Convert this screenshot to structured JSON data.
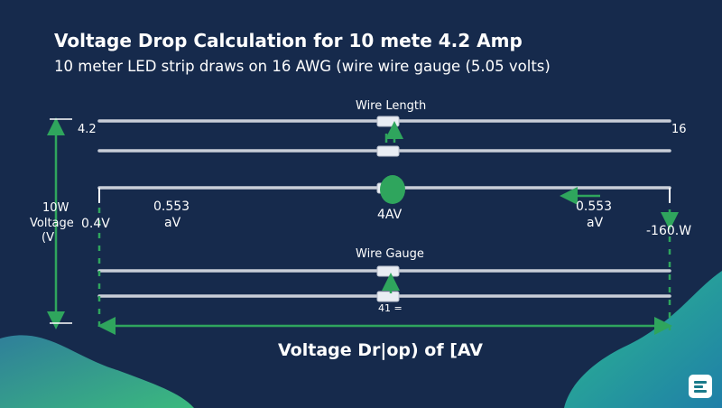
{
  "header": {
    "title": "Voltage Drop Calculation for 10  mete 4.2 Amp",
    "subtitle": "10 meter LED strip draws on  16 AWG (wire wire gauge  (5.05 volts)"
  },
  "diagram": {
    "top_left_value": "4.2",
    "top_right_value": "16",
    "wire_length_label": "Wire Length",
    "left_side_label": [
      "10W",
      "Voltage",
      "(V"
    ],
    "left_voltage_value": "0.4V",
    "left_drop_value": [
      "0.553",
      "aV"
    ],
    "center_value": "4AV",
    "right_drop_value": [
      "0.553",
      "aV"
    ],
    "right_value": "-160.W",
    "wire_gauge_label": "Wire Gauge",
    "gauge_value": "41 =",
    "footer_label": "Voltage Dr|op) of [AV"
  },
  "colors": {
    "background": "#162a4c",
    "accent_green": "#2fa55d",
    "wire": "#c9ced8",
    "corner_blob": "#2aa48a"
  }
}
